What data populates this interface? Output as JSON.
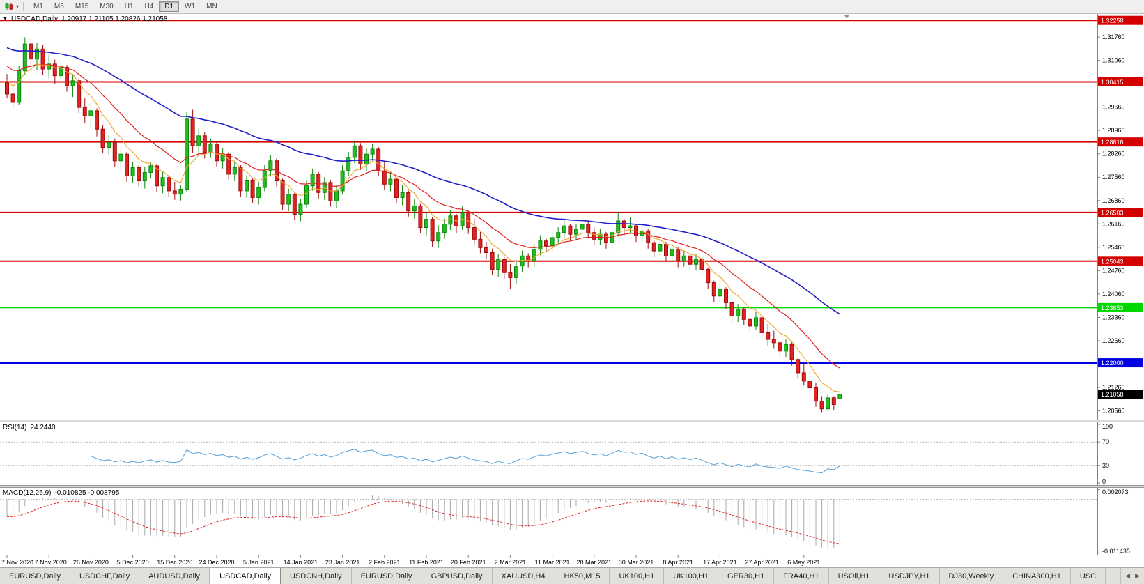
{
  "toolbar": {
    "dropdown_glyph": "▾",
    "timeframes": [
      {
        "label": "M1",
        "active": false
      },
      {
        "label": "M5",
        "active": false
      },
      {
        "label": "M15",
        "active": false
      },
      {
        "label": "M30",
        "active": false
      },
      {
        "label": "H1",
        "active": false
      },
      {
        "label": "H4",
        "active": false
      },
      {
        "label": "D1",
        "active": true
      },
      {
        "label": "W1",
        "active": false
      },
      {
        "label": "MN",
        "active": false
      }
    ]
  },
  "chart": {
    "dropdown_glyph": "▼",
    "title_symbol": "USDCAD,Daily",
    "title_ohlc": "1.20917 1.21105 1.20826 1.21058",
    "rsi_title": "RSI(14)",
    "rsi_value": "24.2440",
    "macd_title": "MACD(12,26,9)",
    "macd_values": "-0.010825 -0.008795"
  },
  "chart_data": {
    "type": "candlestick",
    "symbol": "USDCAD",
    "timeframe": "Daily",
    "colors": {
      "bull": "#1fbf1f",
      "bull_border": "#0c870c",
      "bear": "#e32222",
      "bear_border": "#9d0b0b"
    },
    "axis": {
      "price_top": 1.3245,
      "price_bottom": 1.203,
      "y_ticks": [
        "1.31760",
        "1.31060",
        "1.30360",
        "1.29660",
        "1.28960",
        "1.28260",
        "1.27560",
        "1.26860",
        "1.26160",
        "1.25460",
        "1.24760",
        "1.24060",
        "1.23360",
        "1.22660",
        "1.21960",
        "1.21260",
        "1.20560"
      ]
    },
    "x_label_step": 7,
    "x_labels": [
      "7 Nov 2020",
      "17 Nov 2020",
      "26 Nov 2020",
      "5 Dec 2020",
      "15 Dec 2020",
      "24 Dec 2020",
      "5 Jan 2021",
      "14 Jan 2021",
      "23 Jan 2021",
      "2 Feb 2021",
      "11 Feb 2021",
      "20 Feb 2021",
      "2 Mar 2021",
      "11 Mar 2021",
      "20 Mar 2021",
      "30 Mar 2021",
      "8 Apr 2021",
      "17 Apr 2021",
      "27 Apr 2021",
      "6 May 2021"
    ],
    "hlines": [
      {
        "value": 1.32258,
        "label": "1.32258",
        "color": "#d40000",
        "width": 2
      },
      {
        "value": 1.30415,
        "label": "1.30415",
        "color": "#d40000",
        "width": 2
      },
      {
        "value": 1.28616,
        "label": "1.28616",
        "color": "#d40000",
        "width": 2
      },
      {
        "value": 1.26503,
        "label": "1.26503",
        "color": "#d40000",
        "width": 2
      },
      {
        "value": 1.25043,
        "label": "1.25043",
        "color": "#d40000",
        "width": 2
      },
      {
        "value": 1.23653,
        "label": "1.23653",
        "color": "#00d800",
        "width": 2
      },
      {
        "value": 1.22,
        "label": "1.22000",
        "color": "#0000e0",
        "width": 3
      }
    ],
    "current_price": {
      "value": 1.21058,
      "label": "1.21058"
    },
    "moving_averages": [
      {
        "name": "ma-blue",
        "period": 45,
        "seed": 1.315,
        "color": "#2020c8",
        "width": 1.6
      },
      {
        "name": "ma-red",
        "period": 16,
        "seed": 1.31,
        "color": "#e02020",
        "width": 1.2
      },
      {
        "name": "ma-orange",
        "period": 7,
        "seed": 1.306,
        "color": "#efa32a",
        "width": 1.1
      }
    ],
    "indicators": {
      "rsi": {
        "title": "RSI(14)",
        "value_text": "24.2440",
        "period": 14,
        "levels": [
          70,
          30
        ],
        "scale_labels": [
          "100",
          "70",
          "30",
          "0"
        ],
        "color": "#53a0d8"
      },
      "macd": {
        "title": "MACD(12,26,9)",
        "values_text": "-0.010825 -0.008795",
        "fast": 12,
        "slow": 26,
        "signal": 9,
        "scale_top": "0.002073",
        "scale_bottom": "-0.011435",
        "histogram_color": "#a8a8a8",
        "signal_color": "#e02020"
      }
    },
    "ohlc": [
      [
        1.304,
        1.3065,
        1.2992,
        1.3005
      ],
      [
        1.3005,
        1.303,
        1.2958,
        1.298
      ],
      [
        1.298,
        1.309,
        1.2972,
        1.3075
      ],
      [
        1.3075,
        1.3175,
        1.3062,
        1.3155
      ],
      [
        1.3155,
        1.3172,
        1.3082,
        1.311
      ],
      [
        1.311,
        1.3158,
        1.3078,
        1.314
      ],
      [
        1.314,
        1.3152,
        1.3062,
        1.308
      ],
      [
        1.308,
        1.3122,
        1.3052,
        1.3095
      ],
      [
        1.3095,
        1.3108,
        1.3036,
        1.306
      ],
      [
        1.306,
        1.3098,
        1.3042,
        1.3085
      ],
      [
        1.3085,
        1.3092,
        1.3012,
        1.303
      ],
      [
        1.303,
        1.3062,
        1.2996,
        1.3045
      ],
      [
        1.3045,
        1.3052,
        1.2948,
        1.2965
      ],
      [
        1.2965,
        1.2992,
        1.2918,
        1.294
      ],
      [
        1.294,
        1.2978,
        1.2902,
        1.2955
      ],
      [
        1.2955,
        1.2962,
        1.2878,
        1.29
      ],
      [
        1.29,
        1.2912,
        1.2828,
        1.2845
      ],
      [
        1.2845,
        1.2882,
        1.2822,
        1.286
      ],
      [
        1.286,
        1.2872,
        1.2788,
        1.2805
      ],
      [
        1.2805,
        1.2842,
        1.2772,
        1.2825
      ],
      [
        1.2825,
        1.2832,
        1.2742,
        1.276
      ],
      [
        1.276,
        1.2802,
        1.2738,
        1.2785
      ],
      [
        1.2785,
        1.2792,
        1.2728,
        1.2745
      ],
      [
        1.2745,
        1.2788,
        1.2722,
        1.277
      ],
      [
        1.277,
        1.2802,
        1.2752,
        1.279
      ],
      [
        1.279,
        1.2796,
        1.2712,
        1.273
      ],
      [
        1.273,
        1.2772,
        1.2708,
        1.2755
      ],
      [
        1.2755,
        1.2762,
        1.2698,
        1.2715
      ],
      [
        1.2715,
        1.2742,
        1.2688,
        1.2705
      ],
      [
        1.2705,
        1.2732,
        1.2686,
        1.272
      ],
      [
        1.272,
        1.2952,
        1.2712,
        1.293
      ],
      [
        1.293,
        1.2958,
        1.2828,
        1.285
      ],
      [
        1.285,
        1.2902,
        1.2822,
        1.288
      ],
      [
        1.288,
        1.2892,
        1.2812,
        1.283
      ],
      [
        1.283,
        1.2872,
        1.2814,
        1.2855
      ],
      [
        1.2855,
        1.2864,
        1.2788,
        1.2805
      ],
      [
        1.2805,
        1.2842,
        1.2782,
        1.2825
      ],
      [
        1.2825,
        1.2832,
        1.2748,
        1.2765
      ],
      [
        1.2765,
        1.2802,
        1.2744,
        1.2785
      ],
      [
        1.2785,
        1.2792,
        1.2698,
        1.2715
      ],
      [
        1.2715,
        1.2762,
        1.2694,
        1.2745
      ],
      [
        1.2745,
        1.2752,
        1.2678,
        1.2695
      ],
      [
        1.2695,
        1.2742,
        1.2674,
        1.2725
      ],
      [
        1.2725,
        1.2792,
        1.2714,
        1.2775
      ],
      [
        1.2775,
        1.2822,
        1.2758,
        1.2805
      ],
      [
        1.2805,
        1.2812,
        1.2728,
        1.2745
      ],
      [
        1.2745,
        1.2752,
        1.2658,
        1.2675
      ],
      [
        1.2675,
        1.2722,
        1.2654,
        1.2705
      ],
      [
        1.2705,
        1.2712,
        1.2628,
        1.2645
      ],
      [
        1.2645,
        1.2692,
        1.2624,
        1.2675
      ],
      [
        1.2675,
        1.2748,
        1.2664,
        1.273
      ],
      [
        1.273,
        1.2782,
        1.2716,
        1.2765
      ],
      [
        1.2765,
        1.2772,
        1.2692,
        1.271
      ],
      [
        1.271,
        1.2756,
        1.2688,
        1.274
      ],
      [
        1.274,
        1.2746,
        1.2668,
        1.2685
      ],
      [
        1.2685,
        1.2732,
        1.2664,
        1.2715
      ],
      [
        1.2715,
        1.2792,
        1.2706,
        1.2775
      ],
      [
        1.2775,
        1.2832,
        1.2758,
        1.2815
      ],
      [
        1.2815,
        1.2866,
        1.2798,
        1.285
      ],
      [
        1.285,
        1.2858,
        1.2778,
        1.2795
      ],
      [
        1.2795,
        1.2842,
        1.2774,
        1.2825
      ],
      [
        1.2825,
        1.2856,
        1.2806,
        1.284
      ],
      [
        1.284,
        1.2846,
        1.2758,
        1.2775
      ],
      [
        1.2775,
        1.2802,
        1.2718,
        1.2735
      ],
      [
        1.2735,
        1.2772,
        1.2714,
        1.275
      ],
      [
        1.275,
        1.2756,
        1.2678,
        1.2695
      ],
      [
        1.2695,
        1.2732,
        1.2672,
        1.271
      ],
      [
        1.271,
        1.2716,
        1.2638,
        1.2655
      ],
      [
        1.2655,
        1.2692,
        1.2632,
        1.267
      ],
      [
        1.267,
        1.2676,
        1.2588,
        1.2605
      ],
      [
        1.2605,
        1.2652,
        1.2582,
        1.263
      ],
      [
        1.263,
        1.2636,
        1.2548,
        1.2565
      ],
      [
        1.2565,
        1.2612,
        1.2544,
        1.259
      ],
      [
        1.259,
        1.2632,
        1.2572,
        1.2615
      ],
      [
        1.2615,
        1.2658,
        1.2598,
        1.264
      ],
      [
        1.264,
        1.2646,
        1.2588,
        1.261
      ],
      [
        1.261,
        1.2668,
        1.2598,
        1.265
      ],
      [
        1.265,
        1.2656,
        1.2586,
        1.2605
      ],
      [
        1.2605,
        1.2632,
        1.2552,
        1.257
      ],
      [
        1.257,
        1.2592,
        1.2528,
        1.2545
      ],
      [
        1.2545,
        1.2562,
        1.2512,
        1.253
      ],
      [
        1.253,
        1.2542,
        1.2462,
        1.248
      ],
      [
        1.248,
        1.2526,
        1.2458,
        1.251
      ],
      [
        1.251,
        1.2516,
        1.2452,
        1.247
      ],
      [
        1.247,
        1.2496,
        1.2422,
        1.2455
      ],
      [
        1.2455,
        1.2506,
        1.2438,
        1.249
      ],
      [
        1.249,
        1.2536,
        1.2472,
        1.252
      ],
      [
        1.252,
        1.2528,
        1.2486,
        1.2505
      ],
      [
        1.2505,
        1.2556,
        1.2488,
        1.254
      ],
      [
        1.254,
        1.2582,
        1.2522,
        1.2565
      ],
      [
        1.2565,
        1.2572,
        1.2532,
        1.255
      ],
      [
        1.255,
        1.2592,
        1.2532,
        1.2575
      ],
      [
        1.2575,
        1.2606,
        1.2556,
        1.259
      ],
      [
        1.259,
        1.2626,
        1.2572,
        1.261
      ],
      [
        1.261,
        1.2616,
        1.2566,
        1.2585
      ],
      [
        1.2585,
        1.2616,
        1.2566,
        1.26
      ],
      [
        1.26,
        1.2632,
        1.2582,
        1.2615
      ],
      [
        1.2615,
        1.2622,
        1.2572,
        1.259
      ],
      [
        1.259,
        1.2606,
        1.2552,
        1.257
      ],
      [
        1.257,
        1.2602,
        1.2552,
        1.2585
      ],
      [
        1.2585,
        1.2592,
        1.2542,
        1.256
      ],
      [
        1.256,
        1.2606,
        1.2542,
        1.259
      ],
      [
        1.259,
        1.2652,
        1.2578,
        1.2625
      ],
      [
        1.2625,
        1.2632,
        1.2586,
        1.2605
      ],
      [
        1.2605,
        1.2636,
        1.2588,
        1.261
      ],
      [
        1.261,
        1.2616,
        1.2562,
        1.258
      ],
      [
        1.258,
        1.2612,
        1.2562,
        1.2595
      ],
      [
        1.2595,
        1.2602,
        1.2542,
        1.256
      ],
      [
        1.256,
        1.2566,
        1.2516,
        1.2535
      ],
      [
        1.2535,
        1.2572,
        1.2518,
        1.2555
      ],
      [
        1.2555,
        1.2562,
        1.2502,
        1.252
      ],
      [
        1.252,
        1.2556,
        1.2502,
        1.254
      ],
      [
        1.254,
        1.2546,
        1.2486,
        1.2505
      ],
      [
        1.2505,
        1.2536,
        1.2488,
        1.252
      ],
      [
        1.252,
        1.2526,
        1.2476,
        1.2495
      ],
      [
        1.2495,
        1.2526,
        1.2478,
        1.251
      ],
      [
        1.251,
        1.2516,
        1.2462,
        1.248
      ],
      [
        1.248,
        1.2486,
        1.2422,
        1.244
      ],
      [
        1.244,
        1.2446,
        1.2382,
        1.24
      ],
      [
        1.24,
        1.2436,
        1.2382,
        1.242
      ],
      [
        1.242,
        1.2426,
        1.2362,
        1.238
      ],
      [
        1.238,
        1.2386,
        1.2322,
        1.234
      ],
      [
        1.234,
        1.2376,
        1.2322,
        1.236
      ],
      [
        1.236,
        1.2366,
        1.2312,
        1.233
      ],
      [
        1.233,
        1.2336,
        1.2292,
        1.231
      ],
      [
        1.231,
        1.2352,
        1.2298,
        1.2335
      ],
      [
        1.2335,
        1.2341,
        1.2272,
        1.229
      ],
      [
        1.229,
        1.2316,
        1.2252,
        1.227
      ],
      [
        1.227,
        1.2296,
        1.2242,
        1.226
      ],
      [
        1.226,
        1.2266,
        1.2216,
        1.2235
      ],
      [
        1.2235,
        1.2272,
        1.2218,
        1.2255
      ],
      [
        1.2255,
        1.2261,
        1.2192,
        1.221
      ],
      [
        1.221,
        1.2216,
        1.2152,
        1.217
      ],
      [
        1.217,
        1.2196,
        1.2132,
        1.2145
      ],
      [
        1.2145,
        1.2175,
        1.2108,
        1.2125
      ],
      [
        1.2125,
        1.214,
        1.2068,
        1.2085
      ],
      [
        1.2085,
        1.21,
        1.2052,
        1.2062
      ],
      [
        1.2062,
        1.2105,
        1.2055,
        1.2095
      ],
      [
        1.2095,
        1.21,
        1.2058,
        1.2075
      ],
      [
        1.20917,
        1.21105,
        1.20826,
        1.21058
      ]
    ]
  },
  "tabs": {
    "left_arrow": "◀",
    "right_arrow": "▶",
    "items": [
      {
        "label": "EURUSD,Daily",
        "active": false
      },
      {
        "label": "USDCHF,Daily",
        "active": false
      },
      {
        "label": "AUDUSD,Daily",
        "active": false
      },
      {
        "label": "USDCAD,Daily",
        "active": true
      },
      {
        "label": "USDCNH,Daily",
        "active": false
      },
      {
        "label": "EURUSD,Daily",
        "active": false
      },
      {
        "label": "GBPUSD,Daily",
        "active": false
      },
      {
        "label": "XAUUSD,H4",
        "active": false
      },
      {
        "label": "HK50,M15",
        "active": false
      },
      {
        "label": "UK100,H1",
        "active": false
      },
      {
        "label": "UK100,H1",
        "active": false
      },
      {
        "label": "GER30,H1",
        "active": false
      },
      {
        "label": "FRA40,H1",
        "active": false
      },
      {
        "label": "USOil,H1",
        "active": false
      },
      {
        "label": "USDJPY,H1",
        "active": false
      },
      {
        "label": "DJ30,Weekly",
        "active": false
      },
      {
        "label": "CHINA300,H1",
        "active": false
      },
      {
        "label": "USC",
        "active": false
      }
    ]
  }
}
